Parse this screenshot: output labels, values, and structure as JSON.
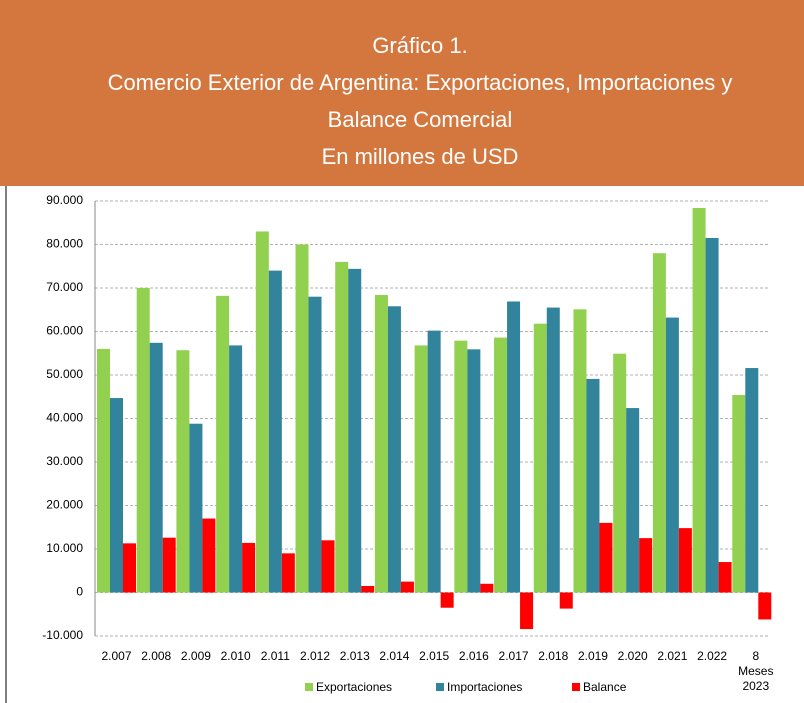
{
  "chart_data": {
    "type": "bar",
    "title": [
      "Gráfico 1.",
      "Comercio Exterior de Argentina: Exportaciones, Importaciones y",
      "Balance Comercial"
    ],
    "subtitle": "En millones de USD",
    "categories": [
      "2.007",
      "2.008",
      "2.009",
      "2.010",
      "2.011",
      "2.012",
      "2.013",
      "2.014",
      "2.015",
      "2.016",
      "2.017",
      "2.018",
      "2.019",
      "2.020",
      "2.021",
      "2.022",
      [
        "8",
        "Meses",
        "2023"
      ]
    ],
    "series": [
      {
        "name": "Exportaciones",
        "color": "#92D050",
        "values": [
          56000,
          70000,
          55700,
          68200,
          83000,
          80000,
          76000,
          68400,
          56800,
          57900,
          58600,
          61800,
          65100,
          54900,
          78000,
          88400,
          45400
        ]
      },
      {
        "name": "Importaciones",
        "color": "#31849B",
        "values": [
          44700,
          57400,
          38800,
          56800,
          74000,
          68000,
          74400,
          65800,
          60200,
          55900,
          66900,
          65500,
          49100,
          42400,
          63200,
          81500,
          51600
        ]
      },
      {
        "name": "Balance",
        "color": "#FF0000",
        "values": [
          11300,
          12600,
          17000,
          11400,
          9000,
          12000,
          1500,
          2500,
          -3500,
          2000,
          -8400,
          -3700,
          16000,
          12500,
          14800,
          7000,
          -6200
        ]
      }
    ],
    "ylim": [
      -10000,
      90000
    ],
    "yticks": [
      {
        "value": -10000,
        "label": "-10.000"
      },
      0,
      {
        "value": 10000,
        "label": "10.000"
      },
      {
        "value": 20000,
        "label": "20.000"
      },
      {
        "value": 30000,
        "label": "30.000"
      },
      {
        "value": 40000,
        "label": "40.000"
      },
      {
        "value": 50000,
        "label": "50.000"
      },
      {
        "value": 60000,
        "label": "60.000"
      },
      {
        "value": 70000,
        "label": "70.000"
      },
      {
        "value": 80000,
        "label": "80.000"
      },
      {
        "value": 90000,
        "label": "90.000"
      }
    ],
    "grid": true,
    "legend": "bottom"
  }
}
